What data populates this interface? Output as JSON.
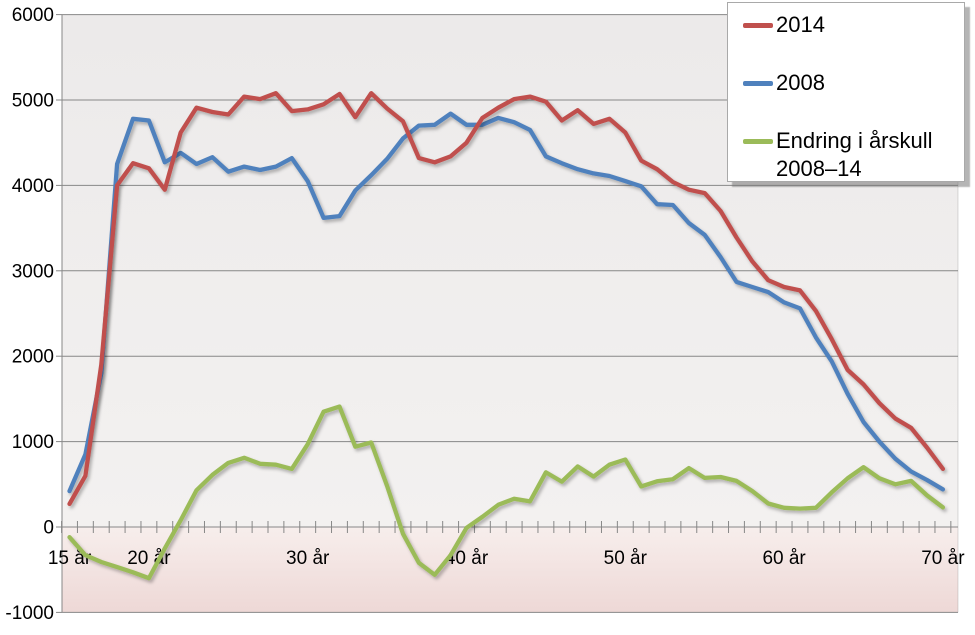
{
  "chart_data": {
    "type": "line",
    "title": "",
    "xlabel": "",
    "ylabel": "",
    "ylim": [
      -1000,
      6000
    ],
    "grid": true,
    "legend_position": "top-right",
    "ages": [
      15,
      16,
      17,
      18,
      19,
      20,
      21,
      22,
      23,
      24,
      25,
      26,
      27,
      28,
      29,
      30,
      31,
      32,
      33,
      34,
      35,
      36,
      37,
      38,
      39,
      40,
      41,
      42,
      43,
      44,
      45,
      46,
      47,
      48,
      49,
      50,
      51,
      52,
      53,
      54,
      55,
      56,
      57,
      58,
      59,
      60,
      61,
      62,
      63,
      64,
      65,
      66,
      67,
      68,
      69,
      70
    ],
    "series": [
      {
        "name": "2014",
        "name_lines": [
          "2014"
        ],
        "color": "#C0504D",
        "values": [
          270,
          600,
          1900,
          4000,
          4260,
          4200,
          3950,
          4620,
          4910,
          4860,
          4830,
          5040,
          5010,
          5080,
          4870,
          4890,
          4950,
          5070,
          4800,
          5080,
          4900,
          4750,
          4320,
          4270,
          4340,
          4500,
          4790,
          4910,
          5010,
          5040,
          4980,
          4760,
          4880,
          4720,
          4780,
          4620,
          4290,
          4190,
          4040,
          3950,
          3910,
          3700,
          3390,
          3110,
          2890,
          2810,
          2770,
          2530,
          2200,
          1840,
          1670,
          1450,
          1270,
          1160,
          930,
          680
        ]
      },
      {
        "name": "2008",
        "name_lines": [
          "2008"
        ],
        "color": "#4F81BD",
        "values": [
          420,
          850,
          1800,
          4250,
          4780,
          4760,
          4270,
          4380,
          4250,
          4330,
          4160,
          4220,
          4180,
          4220,
          4320,
          4050,
          3620,
          3640,
          3940,
          4120,
          4310,
          4550,
          4700,
          4710,
          4840,
          4710,
          4710,
          4790,
          4740,
          4650,
          4340,
          4260,
          4190,
          4140,
          4110,
          4050,
          3990,
          3780,
          3770,
          3560,
          3420,
          3160,
          2870,
          2810,
          2750,
          2630,
          2560,
          2220,
          1940,
          1560,
          1230,
          1000,
          800,
          650,
          550,
          440
        ]
      },
      {
        "name": "Endring i årskull 2008–14",
        "name_lines": [
          "Endring i årskull",
          "2008–14"
        ],
        "color": "#9BBB59",
        "values": [
          -120,
          -330,
          -410,
          -470,
          -530,
          -600,
          -250,
          80,
          430,
          610,
          750,
          810,
          740,
          730,
          680,
          970,
          1350,
          1410,
          940,
          990,
          480,
          -80,
          -420,
          -560,
          -330,
          -10,
          120,
          260,
          330,
          300,
          640,
          530,
          710,
          590,
          730,
          790,
          475,
          535,
          560,
          690,
          575,
          585,
          540,
          420,
          275,
          225,
          215,
          225,
          405,
          570,
          700,
          570,
          500,
          540,
          370,
          230
        ]
      }
    ],
    "y_ticks": [
      6000,
      5000,
      4000,
      3000,
      2000,
      1000,
      0,
      -1000
    ],
    "y_tick_labels": [
      "6000",
      "5000",
      "4000",
      "3000",
      "2000",
      "1000",
      "0",
      "-1000"
    ],
    "x_tick_labels": [
      {
        "age": 15,
        "label": "15 år"
      },
      {
        "age": 20,
        "label": "20 år"
      },
      {
        "age": 30,
        "label": "30 år"
      },
      {
        "age": 40,
        "label": "40 år"
      },
      {
        "age": 50,
        "label": "50 år"
      },
      {
        "age": 60,
        "label": "60 år"
      },
      {
        "age": 70,
        "label": "70 år"
      }
    ]
  },
  "colors": {
    "plot_bg_top": "#ECEAEA",
    "plot_bg_bottom": "#F3F1F0",
    "below_zero_top": "#F7EEEC",
    "below_zero_bottom": "#EED8D6",
    "gridline": "#878787",
    "axis": "#878787",
    "tick": "#878787",
    "label_text": "#000000",
    "legend_bg": "#FFFFFF",
    "legend_border": "#A9A9A9"
  }
}
